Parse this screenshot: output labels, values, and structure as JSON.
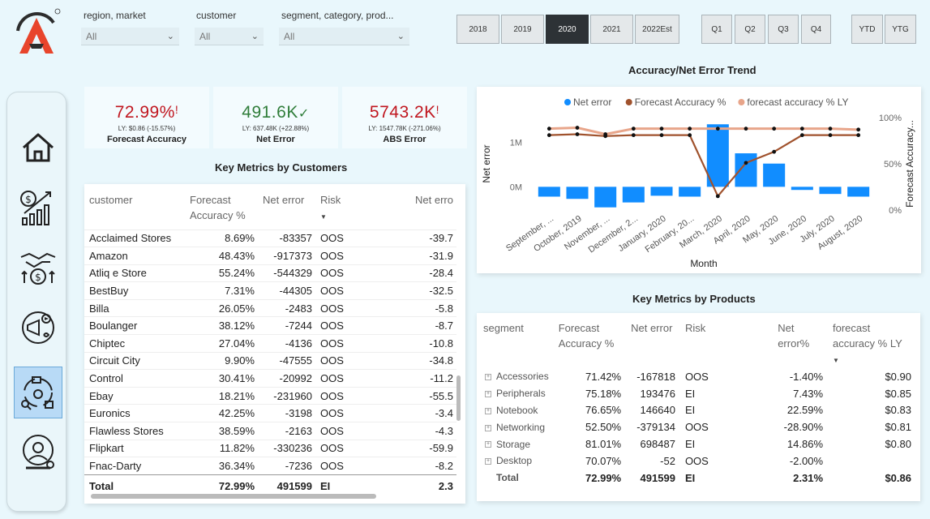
{
  "brand": {
    "accent": "#e8452c"
  },
  "filters": [
    {
      "label": "region, market",
      "value": "All"
    },
    {
      "label": "customer",
      "value": "All"
    },
    {
      "label": "segment, category, prod...",
      "value": "All"
    }
  ],
  "years": [
    "2018",
    "2019",
    "2020",
    "2021",
    "2022Est"
  ],
  "selected_year": "2020",
  "quarters": [
    "Q1",
    "Q2",
    "Q3",
    "Q4"
  ],
  "periods": [
    "YTD",
    "YTG"
  ],
  "nav_icons": [
    "home-icon",
    "revenue-growth-icon",
    "deal-handshake-icon",
    "marketing-icon",
    "supply-chain-icon",
    "executive-icon"
  ],
  "kpis": [
    {
      "value": "72.99%",
      "flag": "!",
      "ly": "LY: $0.86 (-15.57%)",
      "label": "Forecast Accuracy",
      "color": "#c0161f"
    },
    {
      "value": "491.6K",
      "flag": "✓",
      "ly": "LY: 637.48K (+22.88%)",
      "label": "Net Error",
      "color": "#2f7d3a"
    },
    {
      "value": "5743.2K",
      "flag": "!",
      "ly": "LY: 1547.78K (-271.06%)",
      "label": "ABS Error",
      "color": "#c0161f"
    }
  ],
  "customers_title": "Key Metrics by Customers",
  "customers_table": {
    "headers": [
      "customer",
      "Forecast Accuracy %",
      "Net error",
      "Risk",
      "Net erro"
    ],
    "rows": [
      [
        "Acclaimed Stores",
        "8.69%",
        "-83357",
        "OOS",
        "-39.7"
      ],
      [
        "Amazon",
        "48.43%",
        "-917373",
        "OOS",
        "-31.9"
      ],
      [
        "Atliq e Store",
        "55.24%",
        "-544329",
        "OOS",
        "-28.4"
      ],
      [
        "BestBuy",
        "7.31%",
        "-44305",
        "OOS",
        "-32.5"
      ],
      [
        "Billa",
        "26.05%",
        "-2483",
        "OOS",
        "-5.8"
      ],
      [
        "Boulanger",
        "38.12%",
        "-7244",
        "OOS",
        "-8.7"
      ],
      [
        "Chiptec",
        "27.04%",
        "-4136",
        "OOS",
        "-10.8"
      ],
      [
        "Circuit City",
        "9.90%",
        "-47555",
        "OOS",
        "-34.8"
      ],
      [
        "Control",
        "30.41%",
        "-20992",
        "OOS",
        "-11.2"
      ],
      [
        "Ebay",
        "18.21%",
        "-231960",
        "OOS",
        "-55.5"
      ],
      [
        "Euronics",
        "42.25%",
        "-3198",
        "OOS",
        "-3.4"
      ],
      [
        "Flawless Stores",
        "38.59%",
        "-2163",
        "OOS",
        "-4.3"
      ],
      [
        "Flipkart",
        "11.82%",
        "-330236",
        "OOS",
        "-59.9"
      ],
      [
        "Fnac-Darty",
        "36.34%",
        "-7236",
        "OOS",
        "-8.2"
      ]
    ],
    "total": [
      "Total",
      "72.99%",
      "491599",
      "EI",
      "2.3"
    ]
  },
  "chart_title": "Accuracy/Net Error Trend",
  "chart_data": {
    "type": "bar",
    "categories": [
      "September, ...",
      "October, 2019",
      "November, ...",
      "December, 2...",
      "January, 2020",
      "February, 20...",
      "March, 2020",
      "April, 2020",
      "May, 2020",
      "June, 2020",
      "July, 2020",
      "August, 2020"
    ],
    "xlabel": "Month",
    "ylabel": "Net error",
    "y2label": "Forecast Accuracy...",
    "y_ticks": [
      "1M",
      "0M"
    ],
    "y2_ticks": [
      "100%",
      "50%",
      "0%"
    ],
    "ylim": [
      -520000,
      1550000
    ],
    "y2lim": [
      0,
      100
    ],
    "legend_position": "top",
    "series": [
      {
        "name": "Net error",
        "kind": "bar",
        "color": "#118dff",
        "values": [
          -220000,
          -270000,
          -460000,
          -350000,
          -200000,
          -220000,
          1400000,
          750000,
          520000,
          -70000,
          -160000,
          -220000
        ]
      },
      {
        "name": "Forecast Accuracy %",
        "kind": "line",
        "color": "#a0522d",
        "values": [
          81,
          82,
          80,
          81,
          81,
          81,
          15,
          51,
          63,
          81,
          81,
          81
        ]
      },
      {
        "name": "forecast accuracy % LY",
        "kind": "line",
        "color": "#e8a58a",
        "values": [
          88,
          89,
          82,
          88,
          88,
          88,
          88,
          88,
          88,
          88,
          88,
          87
        ]
      }
    ]
  },
  "products_title": "Key Metrics by Products",
  "products_table": {
    "headers": [
      "segment",
      "Forecast Accuracy %",
      "Net error",
      "Risk",
      "Net error%",
      "forecast accuracy % LY"
    ],
    "rows": [
      [
        "Accessories",
        "71.42%",
        "-167818",
        "OOS",
        "-1.40%",
        "$0.90"
      ],
      [
        "Peripherals",
        "75.18%",
        "193476",
        "EI",
        "7.43%",
        "$0.85"
      ],
      [
        "Notebook",
        "76.65%",
        "146640",
        "EI",
        "22.59%",
        "$0.83"
      ],
      [
        "Networking",
        "52.50%",
        "-379134",
        "OOS",
        "-28.90%",
        "$0.81"
      ],
      [
        "Storage",
        "81.01%",
        "698487",
        "EI",
        "14.86%",
        "$0.80"
      ],
      [
        "Desktop",
        "70.07%",
        "-52",
        "OOS",
        "-2.00%",
        ""
      ]
    ],
    "total": [
      "Total",
      "72.99%",
      "491599",
      "EI",
      "2.31%",
      "$0.86"
    ]
  }
}
